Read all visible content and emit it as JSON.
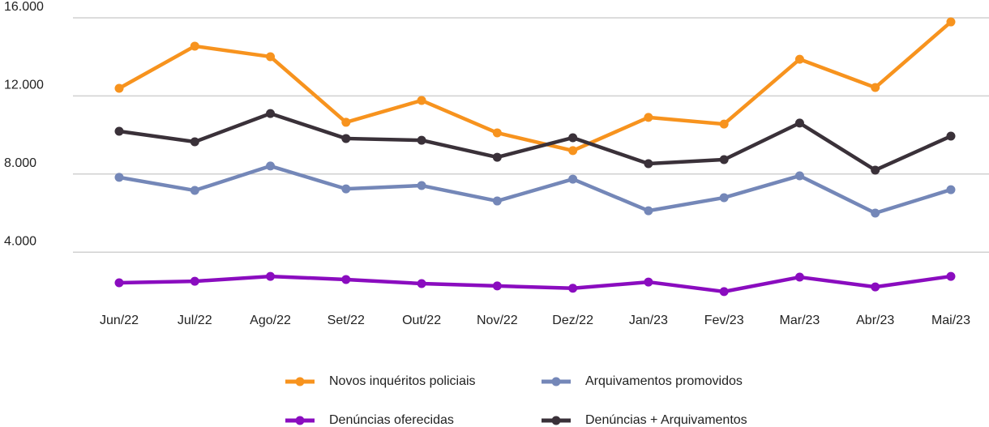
{
  "chart_data": {
    "type": "line",
    "categories": [
      "Jun/22",
      "Jul/22",
      "Ago/22",
      "Set/22",
      "Out/22",
      "Nov/22",
      "Dez/22",
      "Jan/23",
      "Fev/23",
      "Mar/23",
      "Abr/23",
      "Mai/23"
    ],
    "series": [
      {
        "name": "Novos inquéritos policiais",
        "color": "#f7931e",
        "values": [
          12390,
          14550,
          14010,
          10650,
          11770,
          10110,
          9200,
          10900,
          10560,
          13880,
          12430,
          15790
        ]
      },
      {
        "name": "Arquivamentos promovidos",
        "color": "#7487b8",
        "values": [
          7830,
          7160,
          8410,
          7240,
          7410,
          6620,
          7740,
          6120,
          6790,
          7910,
          6000,
          7200
        ]
      },
      {
        "name": "Denúncias oferecidas",
        "color": "#8a0cbf",
        "values": [
          2430,
          2510,
          2760,
          2600,
          2390,
          2270,
          2150,
          2470,
          1980,
          2720,
          2220,
          2760
        ]
      },
      {
        "name": "Denúncias + Arquivamentos",
        "color": "#3a3139",
        "values": [
          10190,
          9650,
          11100,
          9820,
          9730,
          8860,
          9860,
          8530,
          8740,
          10610,
          8200,
          9940
        ]
      }
    ],
    "ylim": [
      0,
      16000
    ],
    "yticks": [
      {
        "value": 4000,
        "label": "4.000"
      },
      {
        "value": 8000,
        "label": "8.000"
      },
      {
        "value": 12000,
        "label": "12.000"
      },
      {
        "value": 16000,
        "label": "16.000"
      }
    ],
    "grid": true,
    "legend": "bottom"
  }
}
